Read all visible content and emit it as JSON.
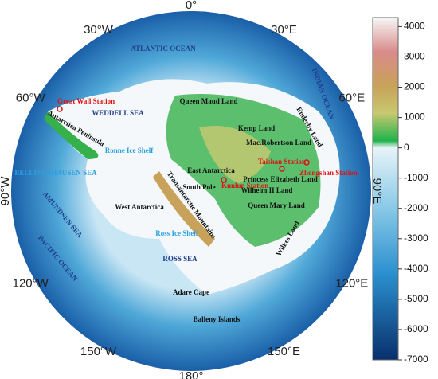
{
  "longitude_labels": [
    "0°",
    "30°E",
    "60°E",
    "90°E",
    "120°E",
    "150°E",
    "180°",
    "150°W",
    "120°W",
    "90°W",
    "60°W",
    "30°W"
  ],
  "places": [
    "ATLANTIC OCEAN",
    "INDIAN OCEAN",
    "WEDDELL SEA",
    "Queen Maud Land",
    "Enderby Land",
    "Kemp Land",
    "Mac.Robertson Land",
    "East Antarctica",
    "South Pole",
    "Princess Elizabeth Land",
    "Wilhelm II Land",
    "Queen Mary Land",
    "West Antarctica",
    "Transantarctic Mountains",
    "Antarctica Peninsula",
    "Ronne Ice Shelf",
    "BELLINGSHAUSEN SEA",
    "AMUNDSEN SEA",
    "PACIFIC OCEAN",
    "Ross Ice Shelf",
    "ROSS SEA",
    "Wilkes Land",
    "Adare Cape",
    "Balleny Islands"
  ],
  "stations": [
    "Great Wall Station",
    "Kunlun Station",
    "Taishan Station",
    "Zhongshan Station"
  ],
  "colorbar": {
    "range": [
      -7000,
      4300
    ],
    "ticks": [
      4000,
      3000,
      2000,
      1000,
      0,
      -1000,
      -2000,
      -3000,
      -4000,
      -5000,
      -6000,
      -7000
    ]
  }
}
